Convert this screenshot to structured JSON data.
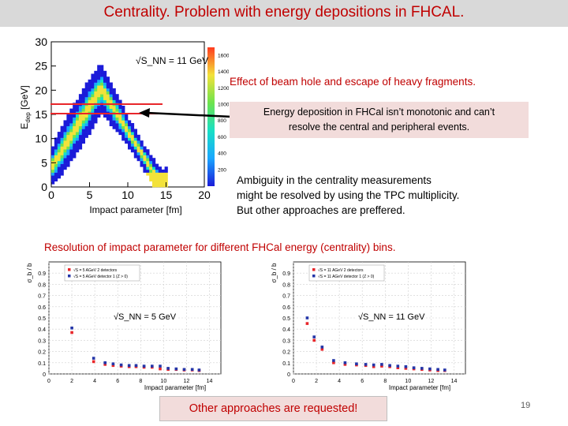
{
  "slide": {
    "title": "Centrality. Problem with  energy depositions in FHCAL.",
    "page_number": "19"
  },
  "top_plot": {
    "ylabel": "E_dep [GeV]",
    "xlabel": "Impact parameter [fm]",
    "annotation": "√S_NN = 11 GeV",
    "x_ticks": [
      "0",
      "5",
      "10",
      "15",
      "20"
    ],
    "y_ticks": [
      "0",
      "5",
      "10",
      "15",
      "20",
      "25",
      "30"
    ],
    "z_ticks": [
      "200",
      "400",
      "600",
      "800",
      "1000",
      "1200",
      "1400",
      "1600"
    ]
  },
  "notes": {
    "beam_hole": "Effect of beam hole and escape of heavy fragments.",
    "deposition_line1": "Energy deposition in FHCal  isn’t monotonic and can’t",
    "deposition_line2": "resolve the central and peripheral events.",
    "ambiguity_line1": "Ambiguity in the centrality measurements",
    "ambiguity_line2": "might be resolved by using the TPC multiplicity.",
    "ambiguity_line3": "But other approaches are preffered.",
    "resolution_heading": "Resolution of impact parameter for different FHCal energy (centrality) bins.",
    "other_approaches": "Other approaches are requested!"
  },
  "chart_data": [
    {
      "type": "heatmap",
      "title": "",
      "xlabel": "Impact parameter [fm]",
      "ylabel": "E_dep [GeV]",
      "xlim": [
        0,
        20
      ],
      "ylim": [
        0,
        30
      ],
      "zlim": [
        0,
        1700
      ],
      "annotation": "√S_NN = 11 GeV",
      "highlighted_band_y": [
        15,
        17
      ]
    },
    {
      "type": "scatter",
      "title": "",
      "xlabel": "Impact parameter [fm]",
      "ylabel": "σ_b / b",
      "xlim": [
        0,
        15
      ],
      "ylim": [
        0,
        1
      ],
      "annotation": "√S_NN = 5 GeV",
      "legend_position": "top-left",
      "x_ticks": [
        "0",
        "2",
        "4",
        "6",
        "8",
        "10",
        "12",
        "14"
      ],
      "y_ticks": [
        "0",
        "0.1",
        "0.2",
        "0.3",
        "0.4",
        "0.5",
        "0.6",
        "0.7",
        "0.8",
        "0.9"
      ],
      "series": [
        {
          "name": "√S = 5 AGeV 2 detectors",
          "color": "#e8262a",
          "x": [
            2.0,
            3.9,
            4.9,
            5.6,
            6.3,
            7.0,
            7.6,
            8.3,
            9.0,
            9.7,
            10.4,
            11.1,
            11.8,
            12.5,
            13.1
          ],
          "y": [
            0.37,
            0.11,
            0.085,
            0.075,
            0.07,
            0.065,
            0.065,
            0.06,
            0.06,
            0.045,
            0.04,
            0.04,
            0.035,
            0.035,
            0.03
          ]
        },
        {
          "name": "√S = 5 AGeV detector 1 (Z > 0)",
          "color": "#2436a8",
          "x": [
            2.0,
            3.9,
            4.9,
            5.6,
            6.3,
            7.0,
            7.6,
            8.3,
            9.0,
            9.7,
            10.4,
            11.1,
            11.8,
            12.5,
            13.1
          ],
          "y": [
            0.41,
            0.14,
            0.1,
            0.09,
            0.08,
            0.075,
            0.075,
            0.07,
            0.07,
            0.07,
            0.05,
            0.045,
            0.04,
            0.04,
            0.035
          ]
        }
      ]
    },
    {
      "type": "scatter",
      "title": "",
      "xlabel": "Impact parameter [fm]",
      "ylabel": "σ_b / b",
      "xlim": [
        0,
        15
      ],
      "ylim": [
        0,
        1
      ],
      "annotation": "√S_NN = 11 GeV",
      "legend_position": "top-left",
      "x_ticks": [
        "0",
        "2",
        "4",
        "6",
        "8",
        "10",
        "12",
        "14"
      ],
      "y_ticks": [
        "0",
        "0.1",
        "0.2",
        "0.3",
        "0.4",
        "0.5",
        "0.6",
        "0.7",
        "0.8",
        "0.9"
      ],
      "series": [
        {
          "name": "√S = 11 AGeV 2 detectors",
          "color": "#e8262a",
          "x": [
            1.2,
            1.8,
            2.5,
            3.5,
            4.5,
            5.5,
            6.3,
            7.0,
            7.7,
            8.4,
            9.1,
            9.8,
            10.5,
            11.2,
            11.9,
            12.6,
            13.2
          ],
          "y": [
            0.45,
            0.3,
            0.22,
            0.1,
            0.085,
            0.08,
            0.075,
            0.065,
            0.07,
            0.065,
            0.055,
            0.05,
            0.045,
            0.04,
            0.035,
            0.03,
            0.03
          ]
        },
        {
          "name": "√S = 11 AGeV detector 1 (Z > 0)",
          "color": "#2436a8",
          "x": [
            1.2,
            1.8,
            2.5,
            3.5,
            4.5,
            5.5,
            6.3,
            7.0,
            7.7,
            8.4,
            9.1,
            9.8,
            10.5,
            11.2,
            11.9,
            12.6,
            13.2
          ],
          "y": [
            0.5,
            0.33,
            0.24,
            0.12,
            0.1,
            0.09,
            0.085,
            0.08,
            0.085,
            0.075,
            0.07,
            0.065,
            0.055,
            0.05,
            0.045,
            0.04,
            0.035
          ]
        }
      ]
    }
  ]
}
